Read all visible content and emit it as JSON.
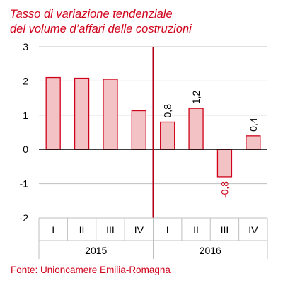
{
  "chart_data": {
    "type": "bar",
    "title_lines": [
      "Tasso di variazione tendenziale",
      "del volume d’affari delle costruzioni"
    ],
    "source": "Fonte: Unioncamere Emilia-Romagna",
    "years": [
      {
        "label": "2015",
        "quarters": [
          "I",
          "II",
          "III",
          "IV"
        ]
      },
      {
        "label": "2016",
        "quarters": [
          "I",
          "II",
          "III",
          "IV"
        ]
      }
    ],
    "categories": [
      "2015 I",
      "2015 II",
      "2015 III",
      "2015 IV",
      "2016 I",
      "2016 II",
      "2016 III",
      "2016 IV"
    ],
    "values": [
      2.1,
      2.08,
      2.05,
      1.13,
      0.8,
      1.2,
      -0.8,
      0.4
    ],
    "data_labels": [
      "",
      "",
      "",
      "",
      "0,8",
      "1,2",
      "-0,8",
      "0,4"
    ],
    "ylim": [
      -2,
      3
    ],
    "yticks": [
      3,
      2,
      1,
      0,
      -1,
      -2
    ],
    "ytick_labels": [
      "3",
      "2",
      "1",
      "0",
      "-1",
      "-2"
    ],
    "grid": true,
    "year_divider_after_category": 4,
    "colors": {
      "bar_fill": "#f2c2c4",
      "bar_stroke": "#d0021b",
      "divider": "#b00014",
      "grid": "#bfbfbf",
      "text": "#000000",
      "accent_text": "#d0021b",
      "negative_label": "#d0021b"
    }
  }
}
